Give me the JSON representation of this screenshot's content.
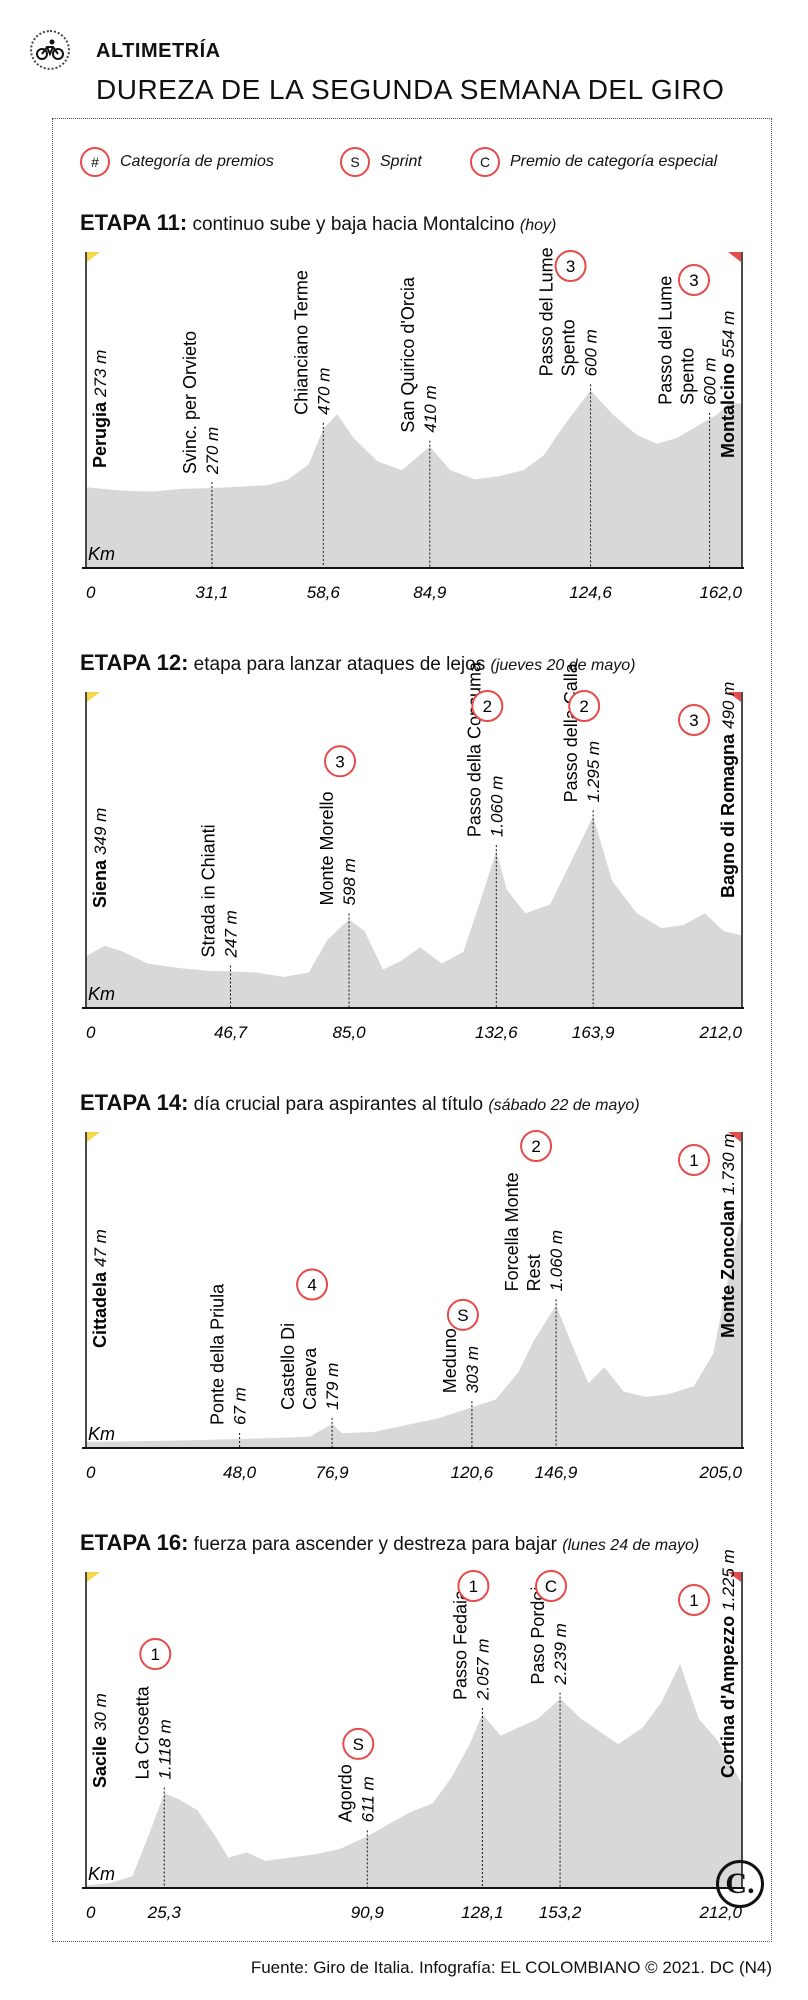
{
  "header": {
    "kicker": "ALTIMETRÍA",
    "title": "DUREZA DE LA SEGUNDA SEMANA DEL GIRO",
    "icon": "cyclist-icon"
  },
  "legend": [
    {
      "symbol": "#",
      "label": "Categoría de premios"
    },
    {
      "symbol": "S",
      "label": "Sprint"
    },
    {
      "symbol": "C",
      "label": "Premio de categoría especial"
    }
  ],
  "colors": {
    "accent": "#e64b4b",
    "profile_fill": "#d8d8d8",
    "start_flag": "#f5d84a",
    "finish_flag": "#e64b4b",
    "axis": "#111111"
  },
  "x_unit": "Km",
  "chart_data": [
    {
      "type": "area",
      "stage_number": "ETAPA 11:",
      "description": "continuo sube y baja hacia Montalcino",
      "date_note": "(hoy)",
      "start": {
        "name": "Perugia",
        "altitude": "273 m"
      },
      "finish": {
        "name": "Montalcino",
        "altitude": "554 m",
        "badge": "3"
      },
      "xlim": [
        0,
        162.0
      ],
      "ticks": [
        {
          "km": 0,
          "label": "0"
        },
        {
          "km": 31.1,
          "label": "31,1"
        },
        {
          "km": 58.6,
          "label": "58,6"
        },
        {
          "km": 84.9,
          "label": "84,9"
        },
        {
          "km": 124.6,
          "label": "124,6"
        },
        {
          "km": 162.0,
          "label": "162,0"
        }
      ],
      "points": [
        {
          "km": 31.1,
          "lines": [
            "Svinc. per Orvieto"
          ],
          "altitude": "270 m",
          "badge": ""
        },
        {
          "km": 58.6,
          "lines": [
            "Chianciano Terme"
          ],
          "altitude": "470 m",
          "badge": ""
        },
        {
          "km": 84.9,
          "lines": [
            "San Quirico d'Orcia"
          ],
          "altitude": "410 m",
          "badge": ""
        },
        {
          "km": 124.6,
          "lines": [
            "Passo del Lume",
            "Spento"
          ],
          "altitude": "600 m",
          "badge": "3"
        },
        {
          "km": 154.0,
          "lines": [
            "Passo del Lume",
            "Spento"
          ],
          "altitude": "600 m",
          "badge": ""
        }
      ],
      "profile": [
        [
          0,
          273
        ],
        [
          8,
          262
        ],
        [
          16,
          258
        ],
        [
          24,
          268
        ],
        [
          31.1,
          270
        ],
        [
          38,
          275
        ],
        [
          45,
          280
        ],
        [
          50,
          300
        ],
        [
          55,
          350
        ],
        [
          58.6,
          470
        ],
        [
          62,
          520
        ],
        [
          66,
          440
        ],
        [
          72,
          360
        ],
        [
          78,
          330
        ],
        [
          84.9,
          410
        ],
        [
          90,
          330
        ],
        [
          96,
          300
        ],
        [
          102,
          310
        ],
        [
          108,
          330
        ],
        [
          113,
          380
        ],
        [
          118,
          480
        ],
        [
          124.6,
          600
        ],
        [
          130,
          520
        ],
        [
          136,
          450
        ],
        [
          141,
          420
        ],
        [
          146,
          440
        ],
        [
          151,
          480
        ],
        [
          156,
          520
        ],
        [
          159,
          560
        ],
        [
          162,
          554
        ]
      ],
      "ylim": [
        0,
        1000
      ]
    },
    {
      "type": "area",
      "stage_number": "ETAPA 12:",
      "description": "etapa para lanzar ataques de lejos",
      "date_note": "(jueves 20 de mayo)",
      "start": {
        "name": "Siena",
        "altitude": "349 m"
      },
      "finish": {
        "name": "Bagno di Romagna",
        "altitude": "490 m",
        "badge": "3"
      },
      "xlim": [
        0,
        212.0
      ],
      "ticks": [
        {
          "km": 0,
          "label": "0"
        },
        {
          "km": 46.7,
          "label": "46,7"
        },
        {
          "km": 85.0,
          "label": "85,0"
        },
        {
          "km": 132.6,
          "label": "132,6"
        },
        {
          "km": 163.9,
          "label": "163,9"
        },
        {
          "km": 212.0,
          "label": "212,0"
        }
      ],
      "points": [
        {
          "km": 46.7,
          "lines": [
            "Strada in Chianti"
          ],
          "altitude": "247 m",
          "badge": ""
        },
        {
          "km": 85.0,
          "lines": [
            "Monte Morello"
          ],
          "altitude": "598 m",
          "badge": "3"
        },
        {
          "km": 132.6,
          "lines": [
            "Passo della Consuma"
          ],
          "altitude": "1.060 m",
          "badge": "2"
        },
        {
          "km": 163.9,
          "lines": [
            "Passo della Calla"
          ],
          "altitude": "1.295 m",
          "badge": "2"
        }
      ],
      "profile": [
        [
          0,
          349
        ],
        [
          6,
          420
        ],
        [
          12,
          380
        ],
        [
          20,
          300
        ],
        [
          30,
          270
        ],
        [
          40,
          250
        ],
        [
          46.7,
          247
        ],
        [
          55,
          240
        ],
        [
          64,
          210
        ],
        [
          72,
          240
        ],
        [
          78,
          460
        ],
        [
          85,
          598
        ],
        [
          90,
          520
        ],
        [
          96,
          260
        ],
        [
          102,
          320
        ],
        [
          108,
          410
        ],
        [
          115,
          300
        ],
        [
          122,
          380
        ],
        [
          128,
          760
        ],
        [
          132.6,
          1060
        ],
        [
          136,
          800
        ],
        [
          142,
          640
        ],
        [
          150,
          700
        ],
        [
          157,
          1000
        ],
        [
          163.9,
          1295
        ],
        [
          170,
          860
        ],
        [
          178,
          640
        ],
        [
          186,
          540
        ],
        [
          193,
          560
        ],
        [
          200,
          640
        ],
        [
          206,
          520
        ],
        [
          212,
          490
        ]
      ],
      "ylim": [
        0,
        2000
      ]
    },
    {
      "type": "area",
      "stage_number": "ETAPA 14:",
      "description": "día crucial para aspirantes al título",
      "date_note": "(sábado 22 de mayo)",
      "start": {
        "name": "Cittadela",
        "altitude": "47 m"
      },
      "finish": {
        "name": "Monte Zoncolan",
        "altitude": "1.730 m",
        "badge": "1"
      },
      "xlim": [
        0,
        205.0
      ],
      "ticks": [
        {
          "km": 0,
          "label": "0"
        },
        {
          "km": 48.0,
          "label": "48,0"
        },
        {
          "km": 76.9,
          "label": "76,9"
        },
        {
          "km": 120.6,
          "label": "120,6"
        },
        {
          "km": 146.9,
          "label": "146,9"
        },
        {
          "km": 205.0,
          "label": "205,0"
        }
      ],
      "points": [
        {
          "km": 48.0,
          "lines": [
            "Ponte della Priula"
          ],
          "altitude": "67 m",
          "badge": ""
        },
        {
          "km": 76.9,
          "lines": [
            "Castello Di",
            "Caneva"
          ],
          "altitude": "179 m",
          "badge": "4"
        },
        {
          "km": 120.6,
          "lines": [
            "Meduno"
          ],
          "altitude": "303 m",
          "badge": "S"
        },
        {
          "km": 146.9,
          "lines": [
            "Forcella Monte",
            "Rest"
          ],
          "altitude": "1.060 m",
          "badge": "2"
        }
      ],
      "profile": [
        [
          0,
          47
        ],
        [
          15,
          50
        ],
        [
          30,
          56
        ],
        [
          48,
          67
        ],
        [
          60,
          75
        ],
        [
          70,
          85
        ],
        [
          74,
          140
        ],
        [
          76.9,
          179
        ],
        [
          80,
          110
        ],
        [
          90,
          120
        ],
        [
          100,
          170
        ],
        [
          110,
          220
        ],
        [
          120.6,
          303
        ],
        [
          128,
          360
        ],
        [
          135,
          560
        ],
        [
          140,
          800
        ],
        [
          146.9,
          1060
        ],
        [
          152,
          760
        ],
        [
          157,
          480
        ],
        [
          162,
          600
        ],
        [
          168,
          420
        ],
        [
          175,
          380
        ],
        [
          182,
          400
        ],
        [
          190,
          460
        ],
        [
          196,
          700
        ],
        [
          201,
          1300
        ],
        [
          205,
          1730
        ]
      ],
      "ylim": [
        0,
        2200
      ]
    },
    {
      "type": "area",
      "stage_number": "ETAPA 16:",
      "description": "fuerza para ascender y destreza para bajar",
      "date_note": "(lunes 24 de mayo)",
      "start": {
        "name": "Sacile",
        "altitude": "30 m"
      },
      "finish": {
        "name": "Cortina d'Ampezzo",
        "altitude": "1.225 m",
        "badge": "1"
      },
      "xlim": [
        0,
        212.0
      ],
      "ticks": [
        {
          "km": 0,
          "label": "0"
        },
        {
          "km": 25.3,
          "label": "25,3"
        },
        {
          "km": 90.9,
          "label": "90,9"
        },
        {
          "km": 128.1,
          "label": "128,1"
        },
        {
          "km": 153.2,
          "label": "153,2"
        },
        {
          "km": 212.0,
          "label": "212,0"
        }
      ],
      "points": [
        {
          "km": 25.3,
          "lines": [
            "La Crosetta"
          ],
          "altitude": "1.118 m",
          "badge": "1"
        },
        {
          "km": 90.9,
          "lines": [
            "Agordo"
          ],
          "altitude": "611 m",
          "badge": "S"
        },
        {
          "km": 128.1,
          "lines": [
            "Passo Fedaia"
          ],
          "altitude": "2.057 m",
          "badge": "1"
        },
        {
          "km": 153.2,
          "lines": [
            "Paso Pordoi"
          ],
          "altitude": "2.239 m",
          "badge": "C"
        }
      ],
      "profile": [
        [
          0,
          30
        ],
        [
          8,
          60
        ],
        [
          15,
          140
        ],
        [
          20,
          600
        ],
        [
          25.3,
          1118
        ],
        [
          30,
          1050
        ],
        [
          36,
          920
        ],
        [
          42,
          600
        ],
        [
          46,
          360
        ],
        [
          52,
          420
        ],
        [
          58,
          320
        ],
        [
          66,
          360
        ],
        [
          74,
          400
        ],
        [
          82,
          460
        ],
        [
          90.9,
          611
        ],
        [
          98,
          760
        ],
        [
          105,
          900
        ],
        [
          112,
          1000
        ],
        [
          118,
          1300
        ],
        [
          124,
          1700
        ],
        [
          128.1,
          2057
        ],
        [
          134,
          1800
        ],
        [
          140,
          1900
        ],
        [
          146,
          2000
        ],
        [
          153.2,
          2239
        ],
        [
          160,
          2000
        ],
        [
          166,
          1850
        ],
        [
          172,
          1700
        ],
        [
          180,
          1900
        ],
        [
          186,
          2200
        ],
        [
          192,
          2650
        ],
        [
          198,
          2000
        ],
        [
          204,
          1750
        ],
        [
          208,
          1500
        ],
        [
          212,
          1225
        ]
      ],
      "ylim": [
        0,
        3500
      ]
    }
  ],
  "footer": "Fuente: Giro de Italia. Infografía: EL COLOMBIANO © 2021. DC (N4)",
  "logo": "C."
}
